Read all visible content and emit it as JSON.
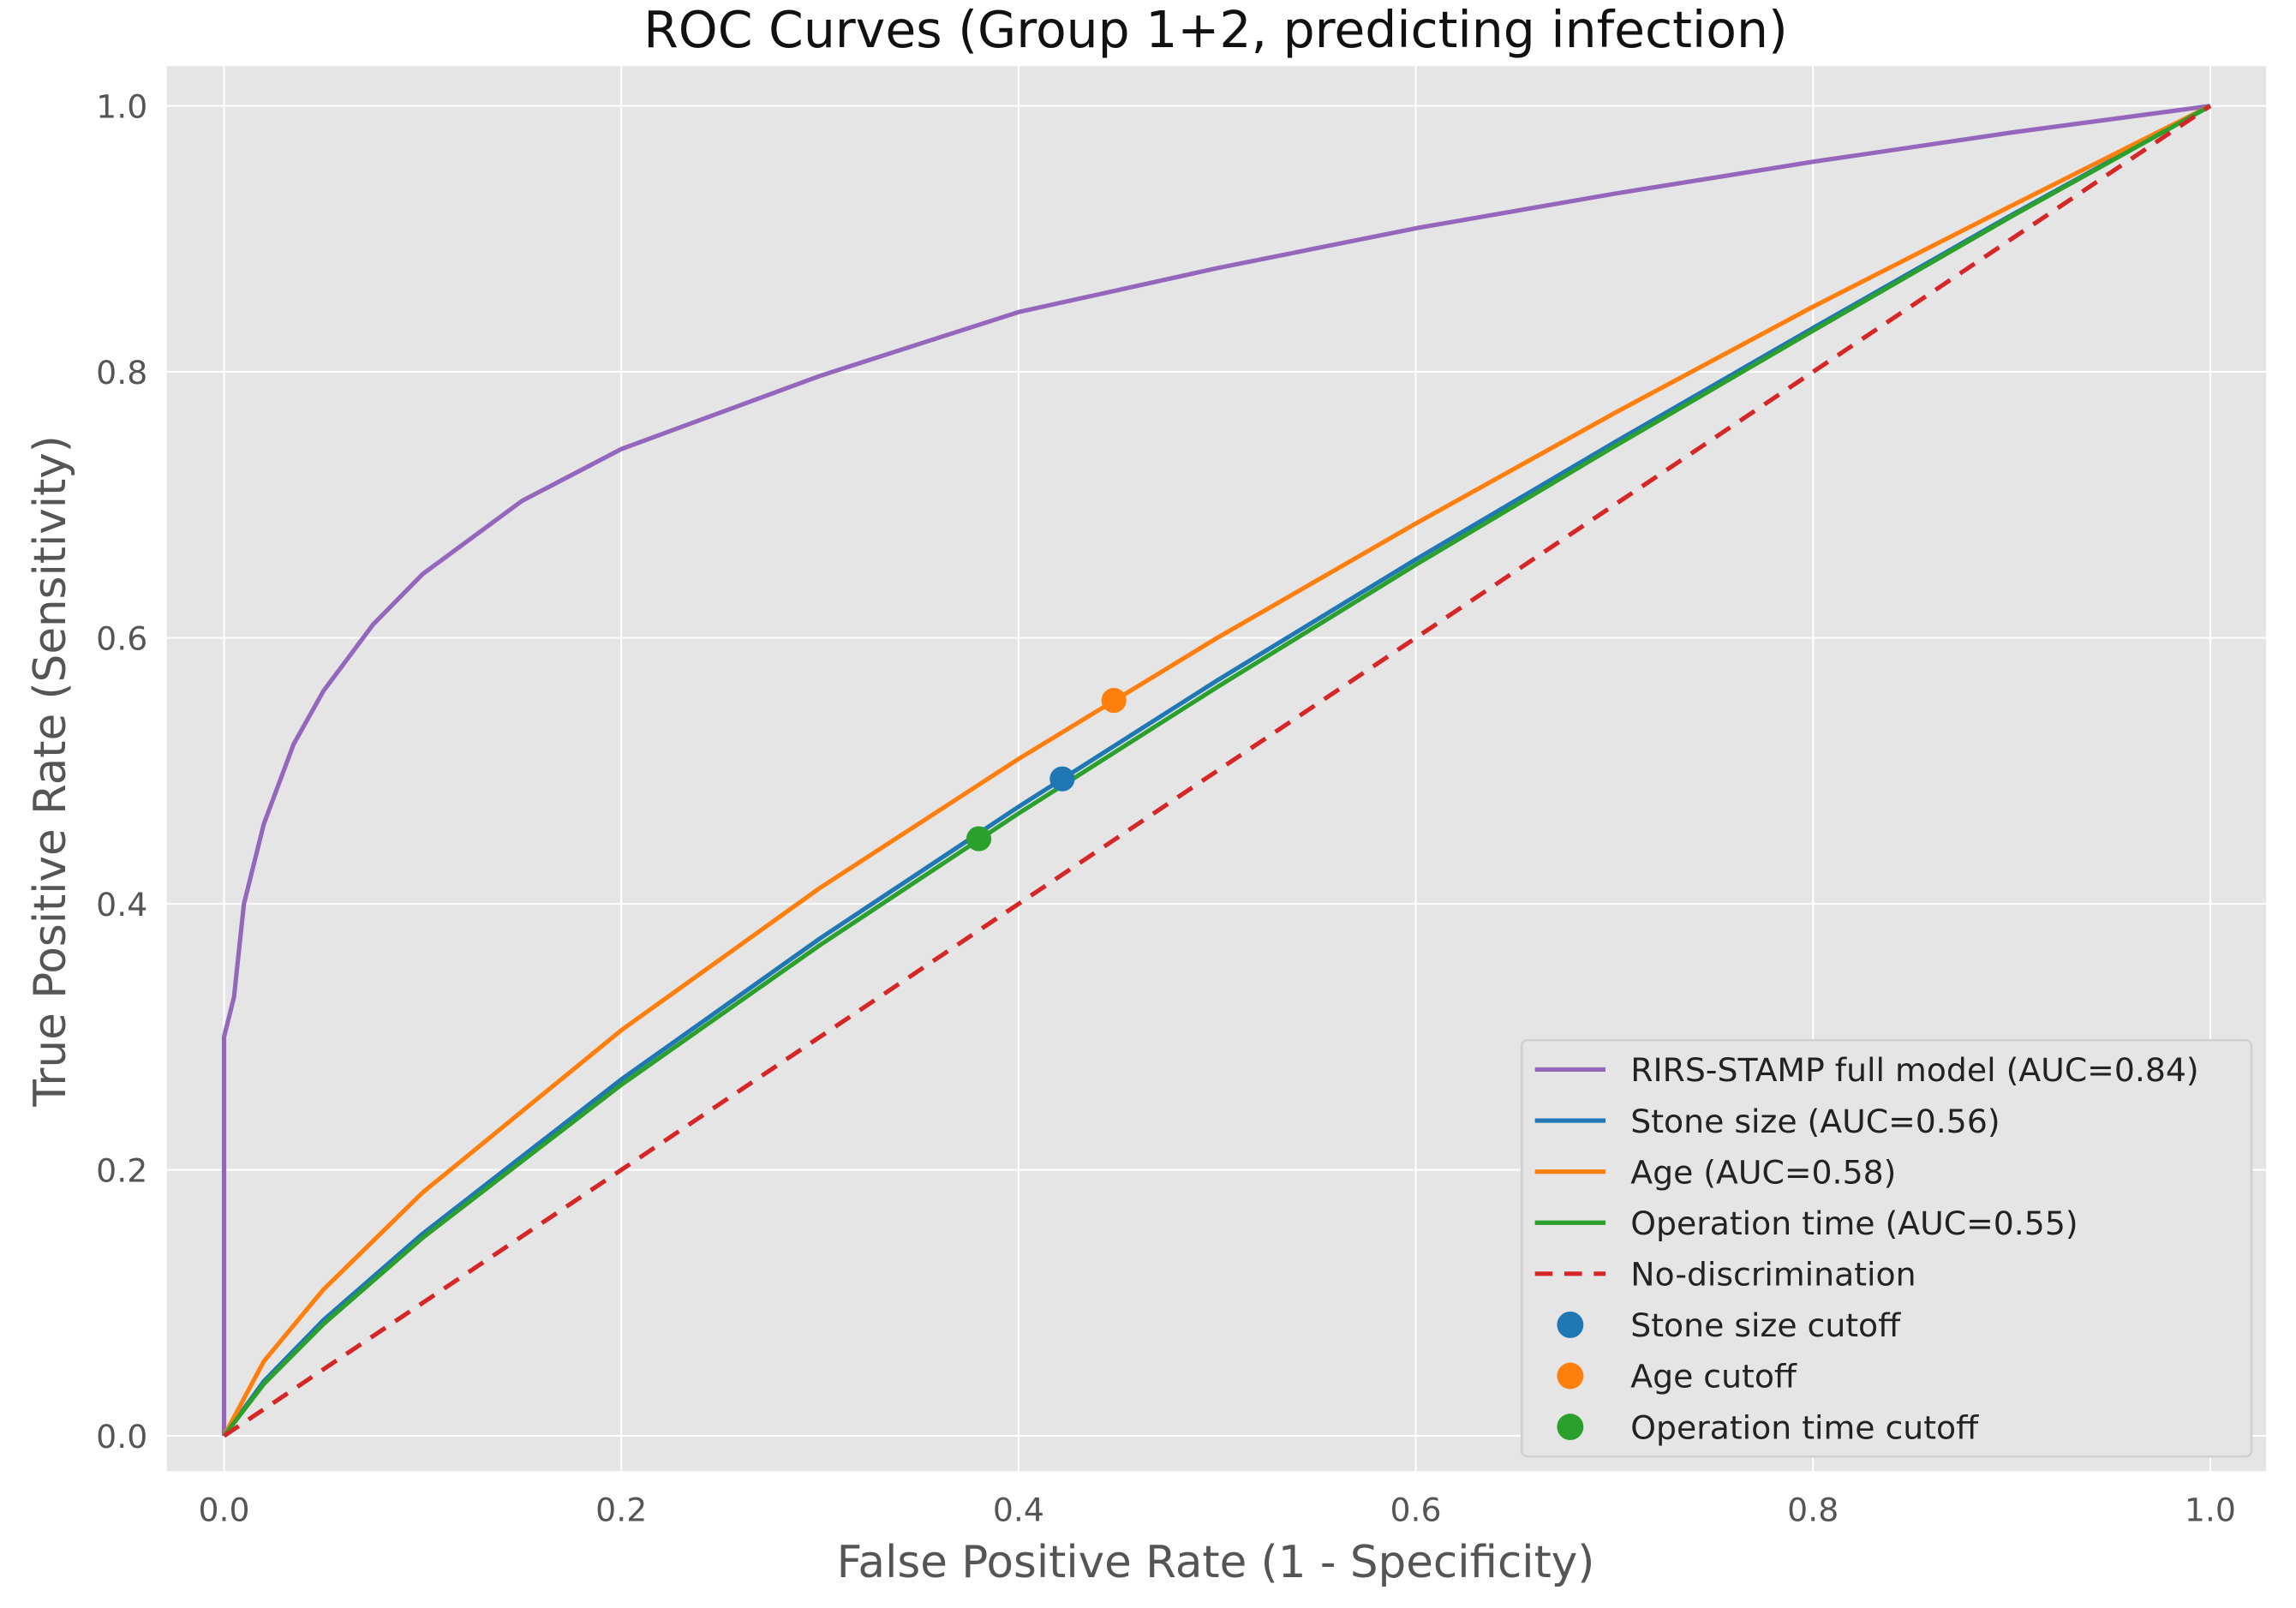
{
  "chart_data": {
    "type": "line",
    "title": "ROC Curves (Group 1+2, predicting infection)",
    "xlabel": "False Positive Rate (1 - Specificity)",
    "ylabel": "True Positive Rate (Sensitivity)",
    "xlim": [
      -0.03,
      1.03
    ],
    "ylim": [
      -0.03,
      1.03
    ],
    "xticks": [
      "0.0",
      "0.2",
      "0.4",
      "0.6",
      "0.8",
      "1.0"
    ],
    "yticks": [
      "0.0",
      "0.2",
      "0.4",
      "0.6",
      "0.8",
      "1.0"
    ],
    "grid": true,
    "legend_position": "lower-right",
    "background": "#e5e5e5",
    "series": [
      {
        "name": "RIRS-STAMP full model (AUC=0.84)",
        "color": "#9467bd",
        "style": "solid",
        "x": [
          0,
          0,
          0.005,
          0.01,
          0.02,
          0.035,
          0.05,
          0.075,
          0.1,
          0.15,
          0.2,
          0.3,
          0.4,
          0.5,
          0.6,
          0.7,
          0.8,
          0.9,
          1.0
        ],
        "y": [
          0,
          0.3,
          0.33,
          0.4,
          0.46,
          0.52,
          0.56,
          0.61,
          0.648,
          0.703,
          0.742,
          0.797,
          0.845,
          0.878,
          0.908,
          0.934,
          0.958,
          0.98,
          1.0
        ]
      },
      {
        "name": "Stone size (AUC=0.56)",
        "color": "#1f77b4",
        "style": "solid",
        "x": [
          0,
          0.02,
          0.05,
          0.1,
          0.2,
          0.3,
          0.4,
          0.5,
          0.6,
          0.7,
          0.8,
          0.9,
          1.0
        ],
        "y": [
          0,
          0.041,
          0.087,
          0.152,
          0.268,
          0.374,
          0.473,
          0.568,
          0.659,
          0.747,
          0.833,
          0.918,
          1.0
        ]
      },
      {
        "name": "Age (AUC=0.58)",
        "color": "#ff7f0e",
        "style": "solid",
        "x": [
          0,
          0.02,
          0.05,
          0.1,
          0.2,
          0.3,
          0.4,
          0.5,
          0.6,
          0.7,
          0.8,
          0.9,
          1.0
        ],
        "y": [
          0,
          0.056,
          0.11,
          0.183,
          0.305,
          0.412,
          0.509,
          0.6,
          0.686,
          0.769,
          0.849,
          0.925,
          1.0
        ]
      },
      {
        "name": "Operation time (AUC=0.55)",
        "color": "#2ca02c",
        "style": "solid",
        "x": [
          0,
          0.02,
          0.05,
          0.1,
          0.2,
          0.3,
          0.4,
          0.5,
          0.6,
          0.7,
          0.8,
          0.9,
          1.0
        ],
        "y": [
          0,
          0.039,
          0.084,
          0.149,
          0.264,
          0.369,
          0.468,
          0.563,
          0.655,
          0.744,
          0.831,
          0.917,
          1.0
        ]
      },
      {
        "name": "No-discrimination",
        "color": "#d62728",
        "style": "dashed",
        "x": [
          0,
          1
        ],
        "y": [
          0,
          1
        ]
      }
    ],
    "points": [
      {
        "name": "Stone size cutoff",
        "color": "#1f77b4",
        "x": 0.422,
        "y": 0.494
      },
      {
        "name": "Age cutoff",
        "color": "#ff7f0e",
        "x": 0.448,
        "y": 0.553
      },
      {
        "name": "Operation time cutoff",
        "color": "#2ca02c",
        "x": 0.38,
        "y": 0.449
      }
    ]
  }
}
